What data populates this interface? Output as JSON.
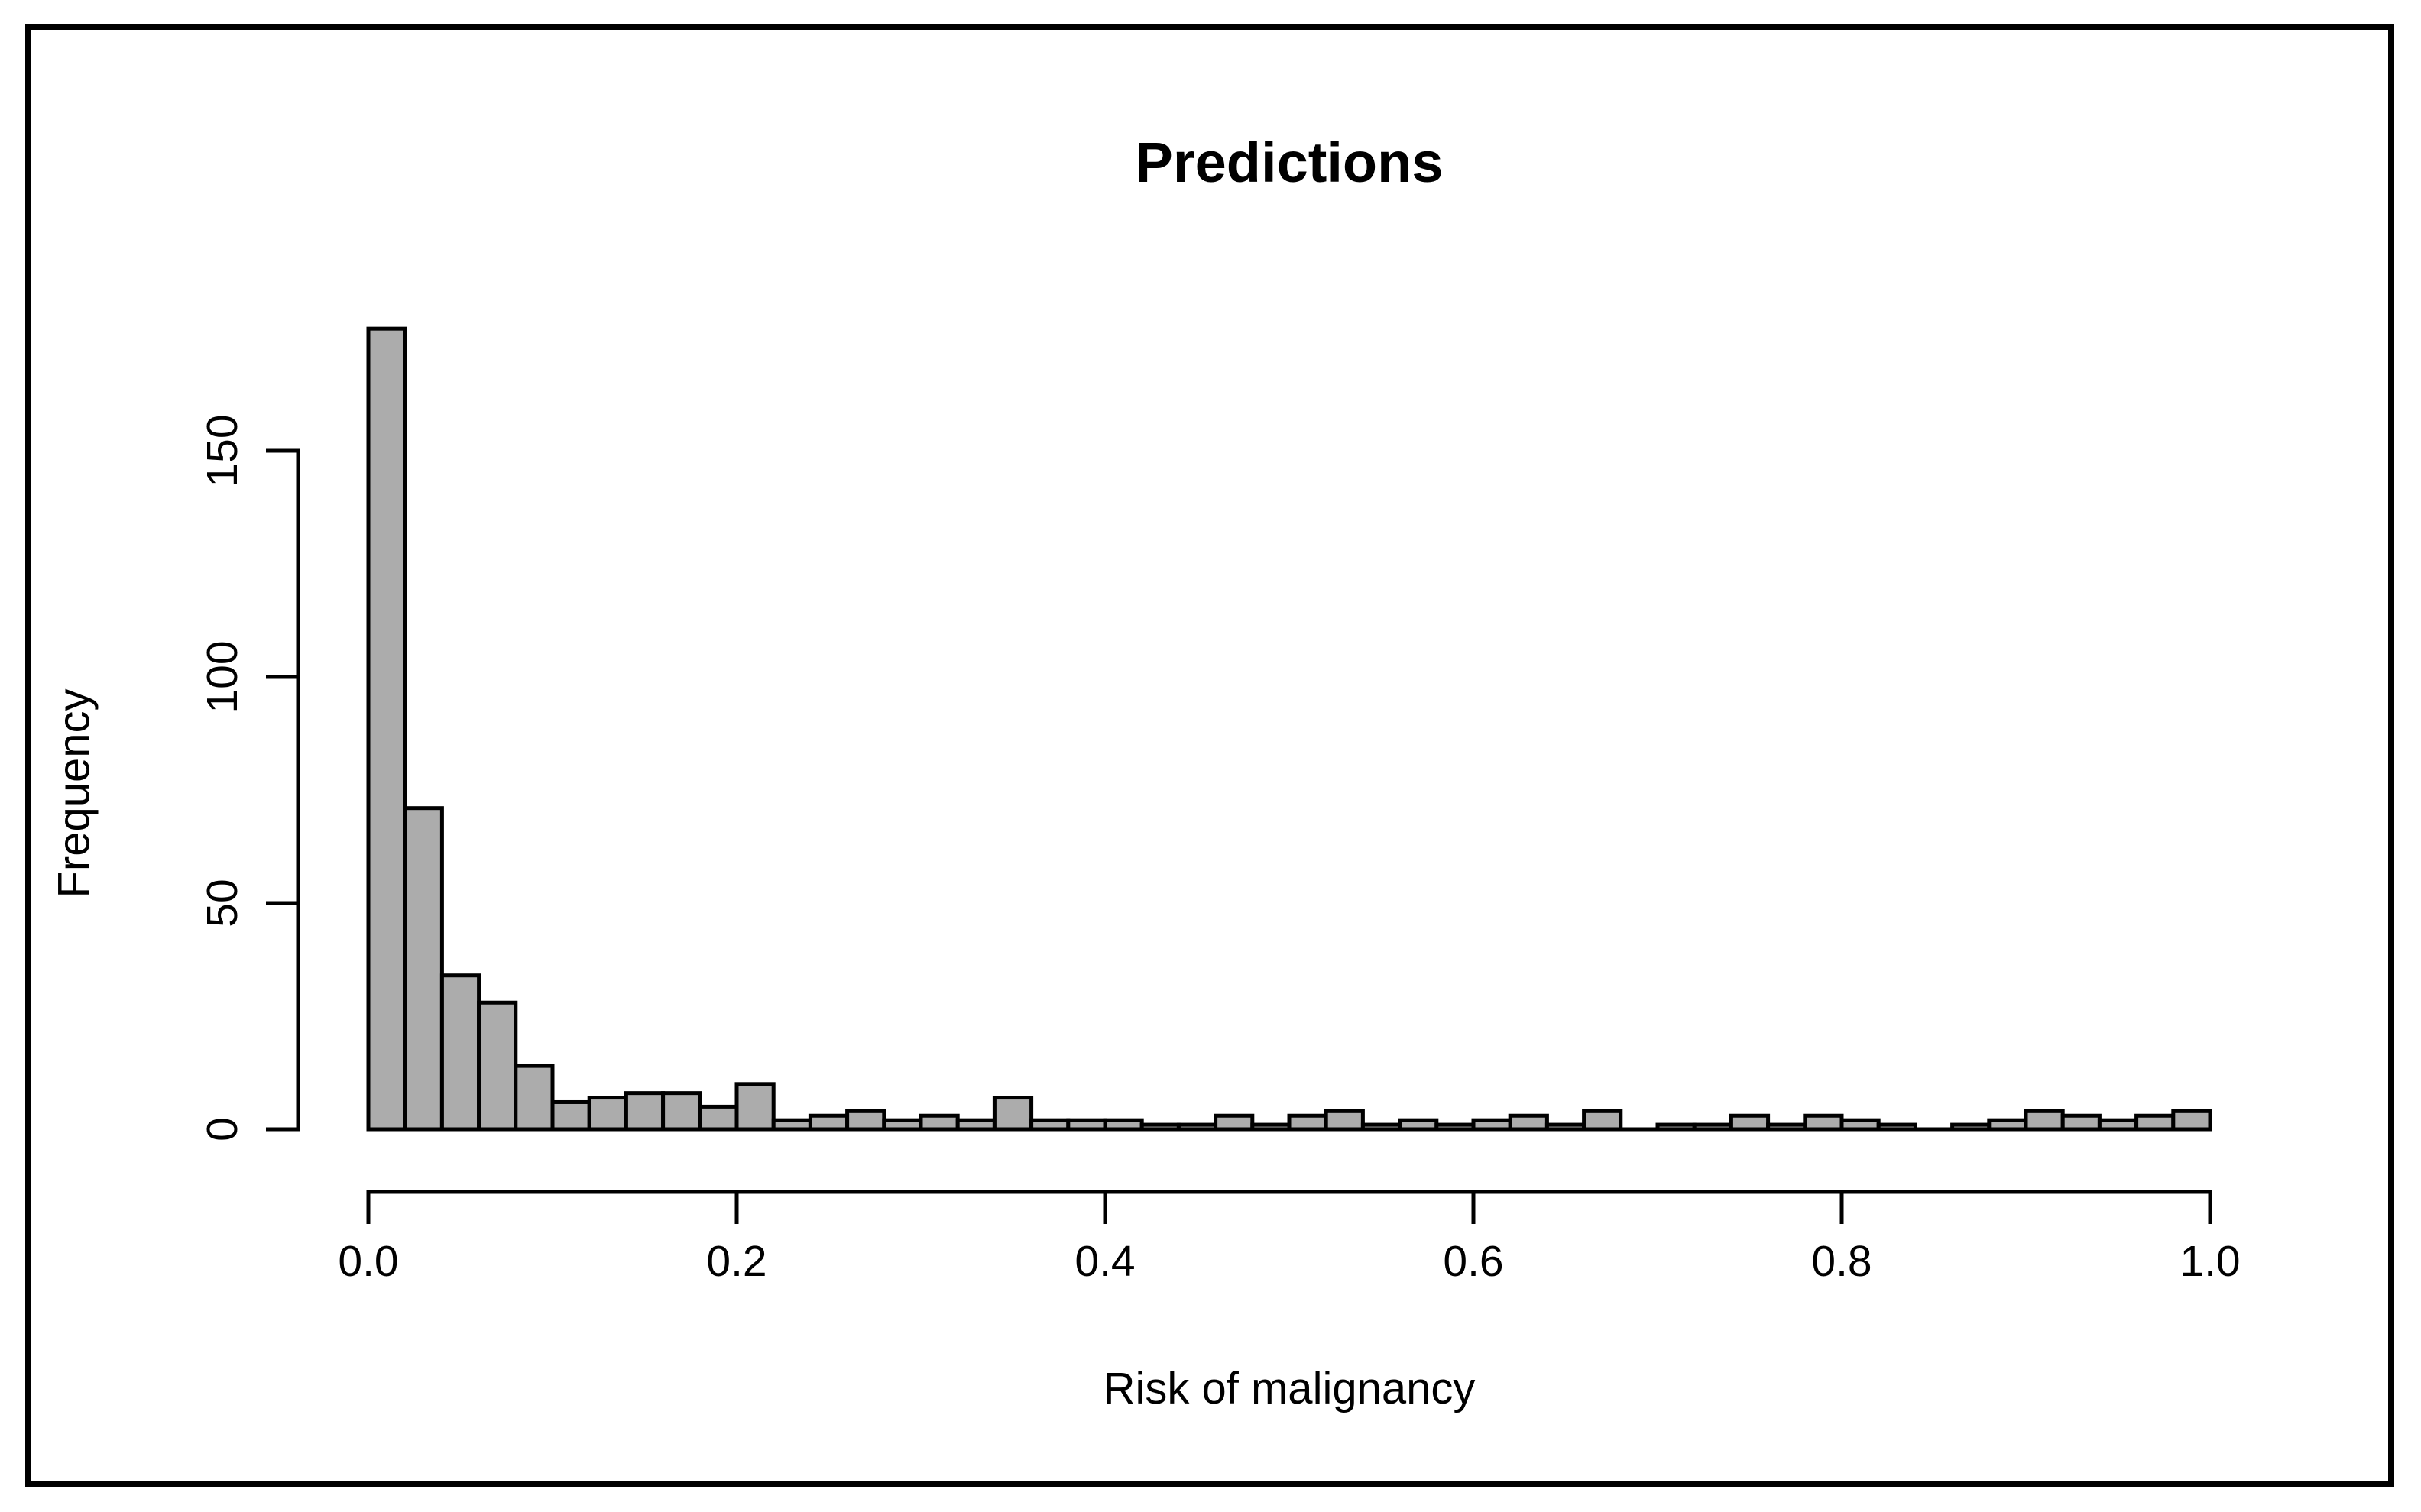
{
  "figure": {
    "background": "#FFFFFF",
    "frame_color": "#000000"
  },
  "chart_data": {
    "type": "bar",
    "subtype": "histogram",
    "title": "Predictions",
    "xlabel": "Risk of malignancy",
    "ylabel": "Frequency",
    "bins": {
      "start": 0.0,
      "width": 0.02,
      "count": 50
    },
    "counts": [
      177,
      71,
      34,
      28,
      14,
      6,
      7,
      8,
      8,
      5,
      10,
      2,
      3,
      4,
      2,
      3,
      2,
      7,
      2,
      2,
      2,
      1,
      1,
      3,
      1,
      3,
      4,
      1,
      2,
      1,
      2,
      3,
      1,
      4,
      0,
      1,
      1,
      3,
      1,
      3,
      2,
      1,
      0,
      1,
      2,
      4,
      3,
      2,
      3,
      4
    ],
    "x_ticks": [
      {
        "value": 0.0,
        "label": "0.0"
      },
      {
        "value": 0.2,
        "label": "0.2"
      },
      {
        "value": 0.4,
        "label": "0.4"
      },
      {
        "value": 0.6,
        "label": "0.6"
      },
      {
        "value": 0.8,
        "label": "0.8"
      },
      {
        "value": 1.0,
        "label": "1.0"
      }
    ],
    "y_ticks": [
      {
        "value": 0,
        "label": "0"
      },
      {
        "value": 50,
        "label": "50"
      },
      {
        "value": 100,
        "label": "100"
      },
      {
        "value": 150,
        "label": "150"
      }
    ],
    "xlim": [
      0.0,
      1.0
    ],
    "ylim": [
      0,
      150
    ],
    "grid": false,
    "legend": null,
    "colors": {
      "bar_fill": "#ACACAC",
      "bar_stroke": "#000000",
      "axis": "#000000",
      "text": "#000000",
      "background": "#FFFFFF",
      "frame": "#000000"
    }
  }
}
